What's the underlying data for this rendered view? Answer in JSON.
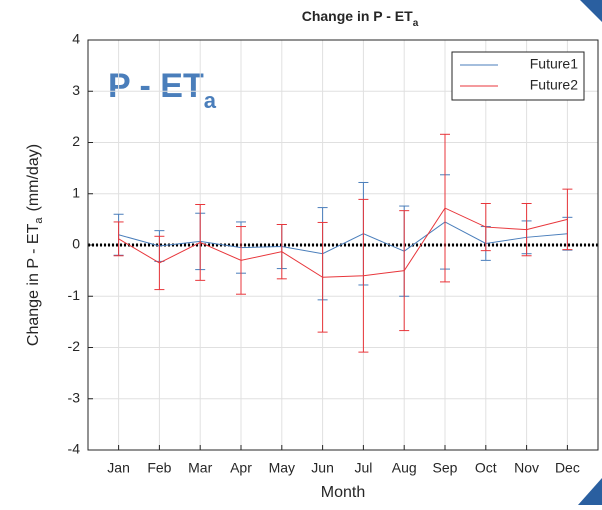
{
  "chart_data": {
    "type": "line",
    "title": {
      "text": "Change in P - ET",
      "subscript": "a"
    },
    "annotation": {
      "text": "P - ET",
      "subscript": "a",
      "color": "#4a7ebb"
    },
    "x_label": "Month",
    "y_label": {
      "text": "Change in P - ET",
      "subscript": "a",
      "suffix": "(mm/day)"
    },
    "categories": [
      "Jan",
      "Feb",
      "Mar",
      "Apr",
      "May",
      "Jun",
      "Jul",
      "Aug",
      "Sep",
      "Oct",
      "Nov",
      "Dec"
    ],
    "series": [
      {
        "name": "Future1",
        "color": "#4a7ebb",
        "values": [
          0.2,
          -0.02,
          0.07,
          -0.05,
          -0.03,
          -0.17,
          0.22,
          -0.12,
          0.45,
          0.03,
          0.15,
          0.22
        ],
        "errors": [
          0.4,
          0.3,
          0.55,
          0.5,
          0.43,
          0.9,
          1.0,
          0.88,
          0.92,
          0.33,
          0.32,
          0.32
        ]
      },
      {
        "name": "Future2",
        "color": "#e8363b",
        "values": [
          0.12,
          -0.35,
          0.05,
          -0.3,
          -0.13,
          -0.63,
          -0.6,
          -0.5,
          0.72,
          0.35,
          0.3,
          0.5
        ],
        "errors": [
          0.33,
          0.52,
          0.74,
          0.66,
          0.53,
          1.07,
          1.49,
          1.17,
          1.44,
          0.46,
          0.51,
          0.59
        ]
      }
    ],
    "reference_line": 0,
    "ylim": [
      -4,
      4
    ],
    "yticks": [
      -4,
      -3,
      -2,
      -1,
      0,
      1,
      2,
      3,
      4
    ],
    "grid": true,
    "legend": "top-right"
  }
}
